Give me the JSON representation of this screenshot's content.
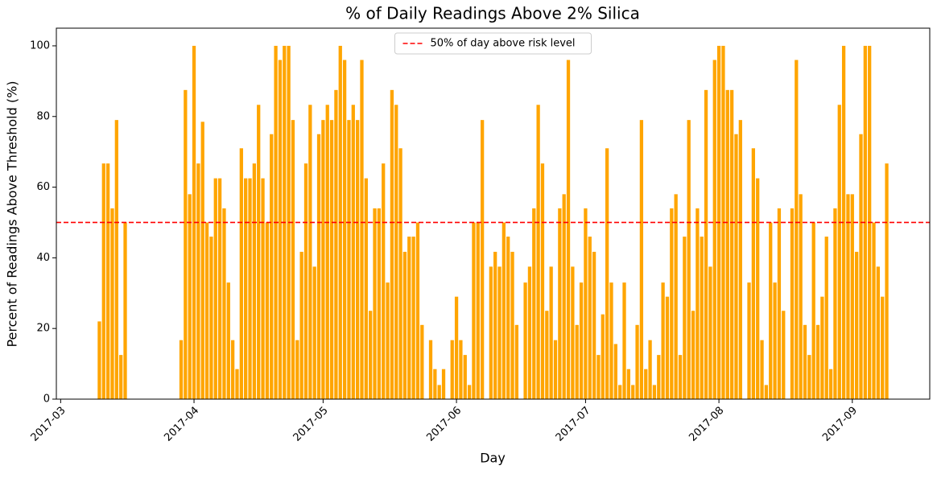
{
  "chart_data": {
    "type": "bar",
    "title": "% of Daily Readings Above 2% Silica",
    "xlabel": "Day",
    "ylabel": "Percent of Readings Above Threshold (%)",
    "color": "#ffa500",
    "x": [
      "2017-03-10",
      "2017-03-11",
      "2017-03-12",
      "2017-03-13",
      "2017-03-14",
      "2017-03-15",
      "2017-03-16",
      "2017-03-29",
      "2017-03-30",
      "2017-03-31",
      "2017-04-01",
      "2017-04-02",
      "2017-04-03",
      "2017-04-04",
      "2017-04-05",
      "2017-04-06",
      "2017-04-07",
      "2017-04-08",
      "2017-04-09",
      "2017-04-10",
      "2017-04-11",
      "2017-04-12",
      "2017-04-13",
      "2017-04-14",
      "2017-04-15",
      "2017-04-16",
      "2017-04-17",
      "2017-04-18",
      "2017-04-19",
      "2017-04-20",
      "2017-04-21",
      "2017-04-22",
      "2017-04-23",
      "2017-04-24",
      "2017-04-25",
      "2017-04-26",
      "2017-04-27",
      "2017-04-28",
      "2017-04-29",
      "2017-04-30",
      "2017-05-01",
      "2017-05-02",
      "2017-05-03",
      "2017-05-04",
      "2017-05-05",
      "2017-05-06",
      "2017-05-07",
      "2017-05-08",
      "2017-05-09",
      "2017-05-10",
      "2017-05-11",
      "2017-05-12",
      "2017-05-13",
      "2017-05-14",
      "2017-05-15",
      "2017-05-16",
      "2017-05-17",
      "2017-05-18",
      "2017-05-19",
      "2017-05-20",
      "2017-05-21",
      "2017-05-22",
      "2017-05-23",
      "2017-05-24",
      "2017-05-26",
      "2017-05-27",
      "2017-05-28",
      "2017-05-29",
      "2017-05-31",
      "2017-06-01",
      "2017-06-02",
      "2017-06-03",
      "2017-06-04",
      "2017-06-05",
      "2017-06-06",
      "2017-06-07",
      "2017-06-09",
      "2017-06-10",
      "2017-06-11",
      "2017-06-12",
      "2017-06-13",
      "2017-06-14",
      "2017-06-15",
      "2017-06-17",
      "2017-06-18",
      "2017-06-19",
      "2017-06-20",
      "2017-06-21",
      "2017-06-22",
      "2017-06-23",
      "2017-06-24",
      "2017-06-25",
      "2017-06-26",
      "2017-06-27",
      "2017-06-28",
      "2017-06-29",
      "2017-06-30",
      "2017-07-01",
      "2017-07-02",
      "2017-07-03",
      "2017-07-04",
      "2017-07-05",
      "2017-07-06",
      "2017-07-07",
      "2017-07-08",
      "2017-07-09",
      "2017-07-10",
      "2017-07-11",
      "2017-07-12",
      "2017-07-13",
      "2017-07-14",
      "2017-07-15",
      "2017-07-16",
      "2017-07-17",
      "2017-07-18",
      "2017-07-19",
      "2017-07-20",
      "2017-07-21",
      "2017-07-22",
      "2017-07-23",
      "2017-07-24",
      "2017-07-25",
      "2017-07-26",
      "2017-07-27",
      "2017-07-28",
      "2017-07-29",
      "2017-07-30",
      "2017-07-31",
      "2017-08-01",
      "2017-08-02",
      "2017-08-03",
      "2017-08-04",
      "2017-08-05",
      "2017-08-06",
      "2017-08-08",
      "2017-08-09",
      "2017-08-10",
      "2017-08-11",
      "2017-08-12",
      "2017-08-13",
      "2017-08-14",
      "2017-08-15",
      "2017-08-16",
      "2017-08-18",
      "2017-08-19",
      "2017-08-20",
      "2017-08-21",
      "2017-08-22",
      "2017-08-23",
      "2017-08-24",
      "2017-08-25",
      "2017-08-26",
      "2017-08-27",
      "2017-08-28",
      "2017-08-29",
      "2017-08-30",
      "2017-08-31",
      "2017-09-01",
      "2017-09-02",
      "2017-09-03",
      "2017-09-04",
      "2017-09-05",
      "2017-09-06",
      "2017-09-07",
      "2017-09-08",
      "2017-09-09"
    ],
    "values": [
      22,
      66.7,
      66.7,
      54,
      79,
      12.5,
      50,
      16.7,
      87.5,
      58,
      100,
      66.7,
      78.5,
      50,
      46,
      62.5,
      62.5,
      54,
      33,
      16.7,
      8.5,
      71,
      62.5,
      62.5,
      66.7,
      83.3,
      62.5,
      50,
      75,
      100,
      96,
      100,
      100,
      79,
      16.7,
      41.7,
      66.7,
      83.3,
      37.5,
      75,
      79,
      83.3,
      79,
      87.5,
      100,
      96,
      79,
      83.3,
      79,
      96,
      62.5,
      25,
      54,
      54,
      66.7,
      33,
      87.5,
      83.3,
      71,
      41.7,
      46,
      46,
      50,
      21,
      16.7,
      8.5,
      4,
      8.5,
      16.7,
      29,
      16.7,
      12.5,
      4,
      50,
      50,
      79,
      37.5,
      41.7,
      37.5,
      50,
      46,
      41.7,
      21,
      33,
      37.5,
      54,
      83.3,
      66.7,
      25,
      37.5,
      16.7,
      54,
      58,
      96,
      37.5,
      21,
      33,
      54,
      46,
      41.7,
      12.5,
      24,
      71,
      33,
      15.6,
      4,
      33,
      8.5,
      4,
      21,
      79,
      8.5,
      16.7,
      4,
      12.5,
      33,
      29,
      54,
      58,
      12.5,
      46,
      79,
      25,
      54,
      46,
      87.5,
      37.5,
      96,
      100,
      100,
      87.5,
      87.5,
      75,
      79,
      33,
      71,
      62.5,
      16.7,
      4,
      50,
      33,
      54,
      25,
      54,
      96,
      58,
      21,
      12.5,
      50,
      21,
      29,
      46,
      8.5,
      54,
      83.3,
      100,
      58,
      58,
      41.7,
      75,
      100,
      100,
      50,
      37.5,
      29,
      66.7
    ],
    "xlim": [
      "2017-02-28",
      "2017-09-19"
    ],
    "xticks": [
      {
        "value": "2017-03-01",
        "label": "2017-03"
      },
      {
        "value": "2017-04-01",
        "label": "2017-04"
      },
      {
        "value": "2017-05-01",
        "label": "2017-05"
      },
      {
        "value": "2017-06-01",
        "label": "2017-06"
      },
      {
        "value": "2017-07-01",
        "label": "2017-07"
      },
      {
        "value": "2017-08-01",
        "label": "2017-08"
      },
      {
        "value": "2017-09-01",
        "label": "2017-09"
      }
    ],
    "ylim": [
      0,
      105
    ],
    "yticks": [
      0,
      20,
      40,
      60,
      80,
      100
    ],
    "reference_line": {
      "value": 50,
      "label": "50% of day above risk level",
      "color": "red"
    },
    "legend": "upper center",
    "grid": false
  }
}
